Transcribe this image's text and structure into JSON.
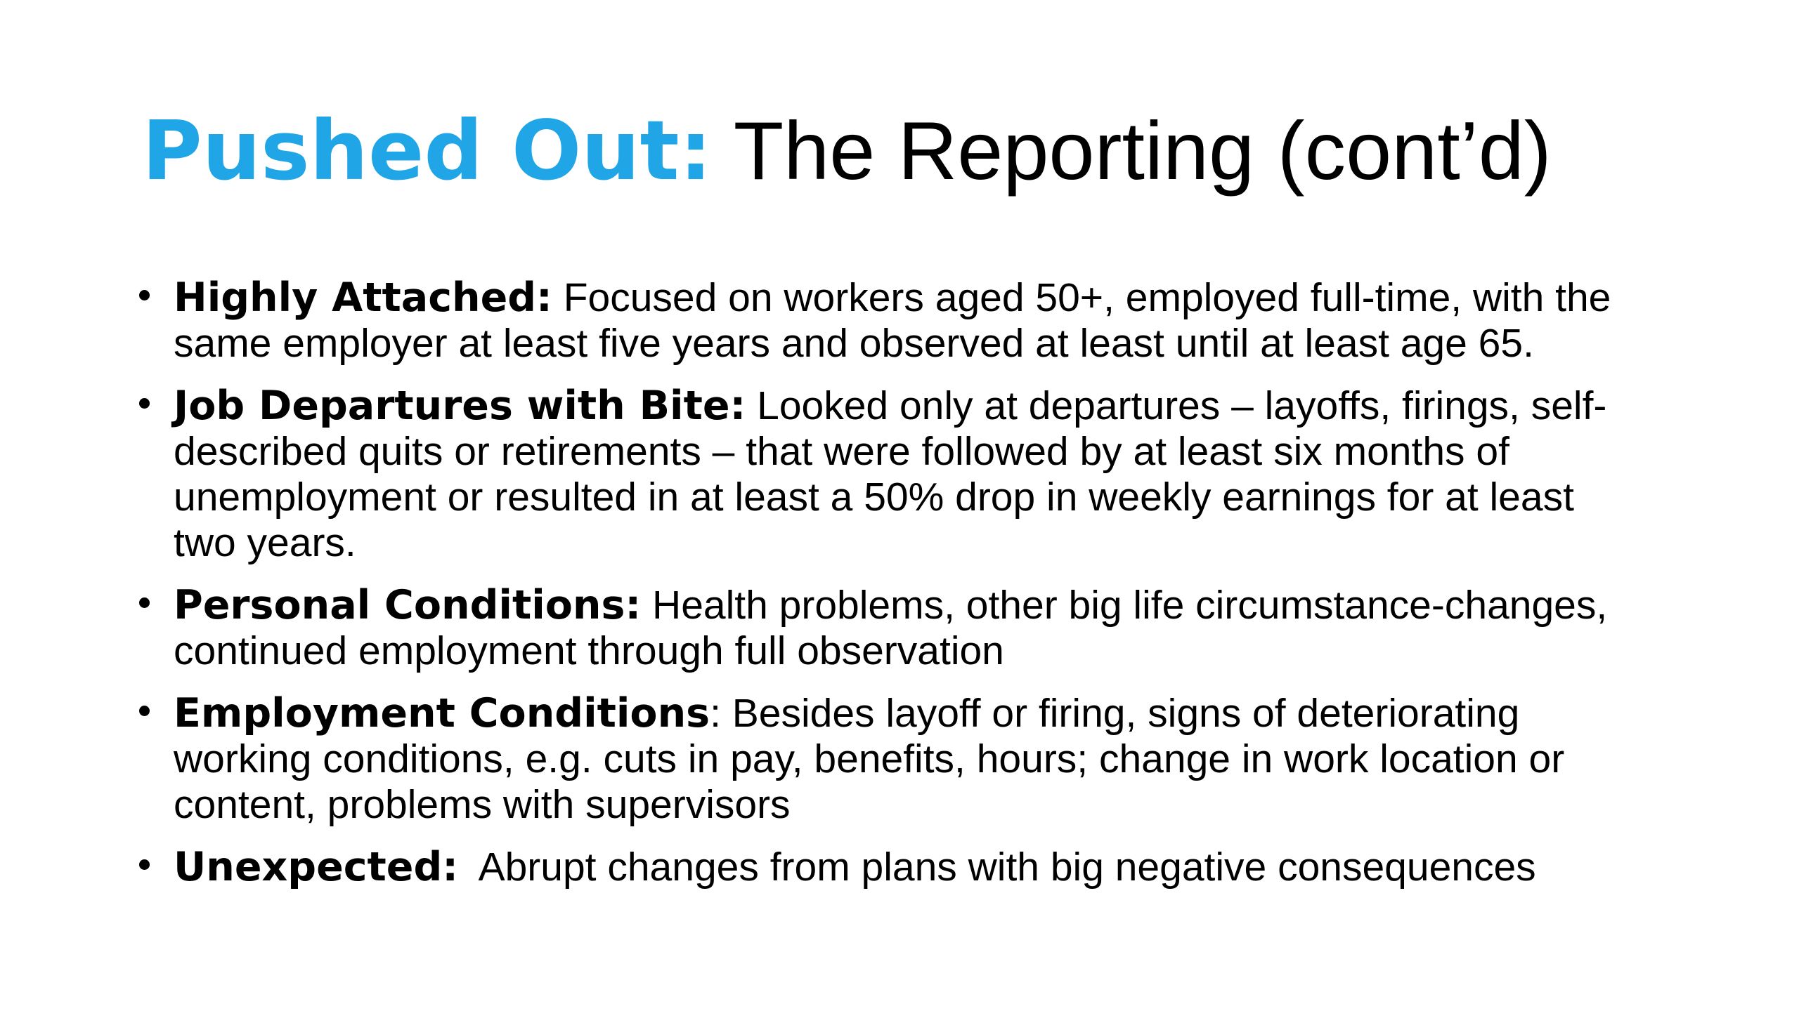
{
  "slide": {
    "background": "#ffffff",
    "accent_color": "#20A5E6",
    "text_color": "#000000",
    "title": {
      "lead": "Pushed Out:",
      "rest": " The Reporting (cont’d)"
    },
    "bullets": [
      {
        "lead": "Highly Attached:",
        "lines": [
          " Focused on workers aged 50+, employed full-time, with the",
          "same employer at least five years and observed at least until at least age 65."
        ]
      },
      {
        "lead": "Job Departures with Bite:",
        "lines": [
          " Looked only at departures – layoffs, firings, self-",
          "described quits or retirements – that were followed by at least six months of",
          "unemployment or resulted in at least a 50% drop in weekly earnings for at least",
          "two years."
        ]
      },
      {
        "lead": "Personal Conditions:",
        "lines": [
          " Health problems, other big life circumstance-changes,",
          "continued employment through full observation"
        ]
      },
      {
        "lead": "Employment Conditions",
        "lines": [
          ": Besides layoff or firing, signs of deteriorating",
          "working conditions, e.g. cuts in pay, benefits, hours; change in work location or",
          "content, problems with supervisors"
        ]
      },
      {
        "lead": "Unexpected:",
        "lines": [
          "  Abrupt changes from plans with big negative consequences"
        ]
      }
    ]
  }
}
